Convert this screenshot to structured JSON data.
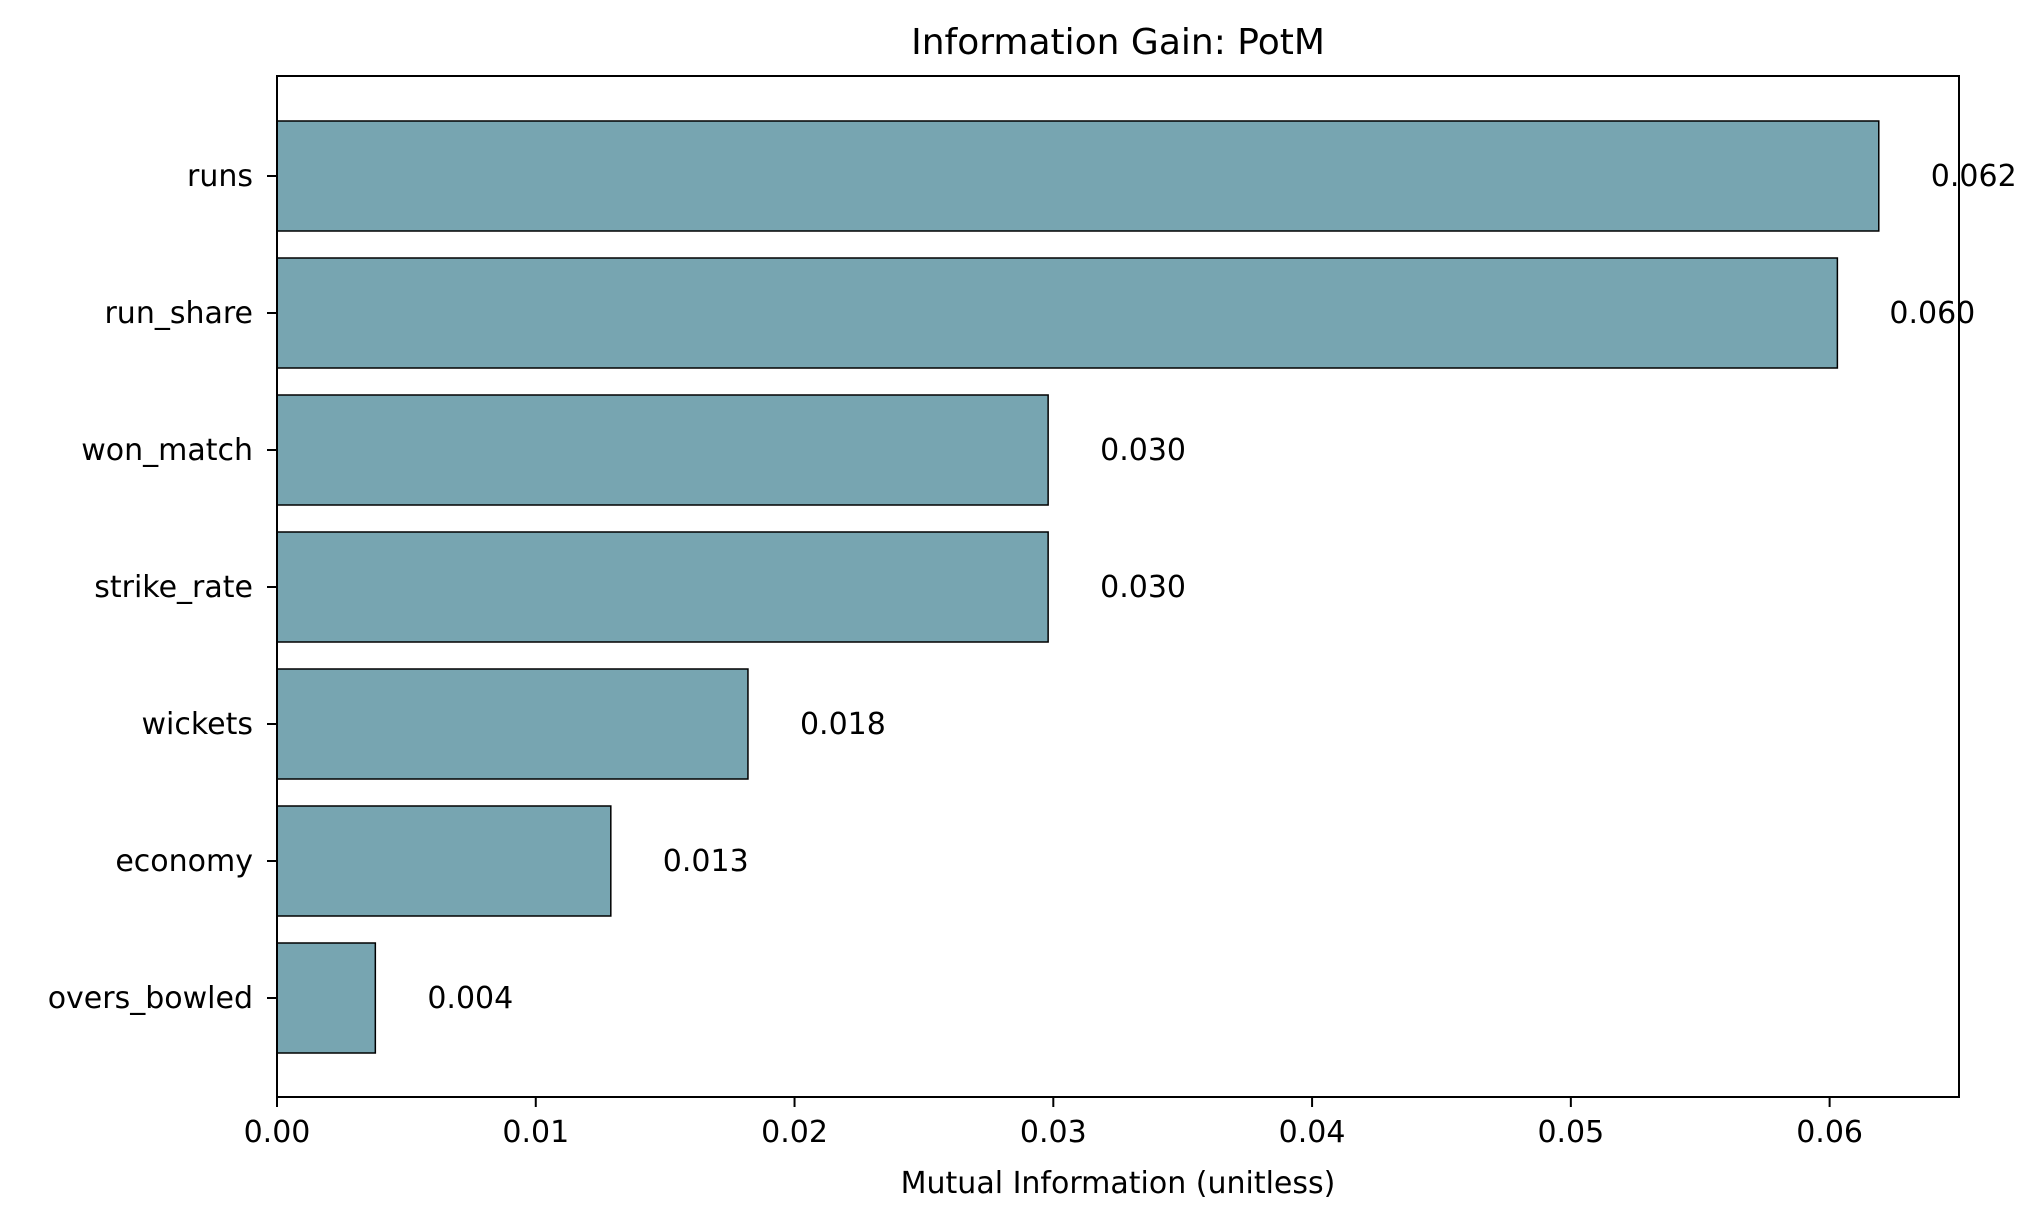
{
  "chart_data": {
    "type": "bar",
    "orientation": "horizontal",
    "title": "Information Gain: PotM",
    "xlabel": "Mutual Information (unitless)",
    "ylabel": "",
    "categories": [
      "runs",
      "run_share",
      "won_match",
      "strike_rate",
      "wickets",
      "economy",
      "overs_bowled"
    ],
    "values": [
      0.0619,
      0.0603,
      0.0298,
      0.0298,
      0.0182,
      0.0129,
      0.0038
    ],
    "data_labels": [
      "0.062",
      "0.060",
      "0.030",
      "0.030",
      "0.018",
      "0.013",
      "0.004"
    ],
    "xlim": [
      0,
      0.065
    ],
    "xticks": [
      0,
      0.01,
      0.02,
      0.03,
      0.04,
      0.05,
      0.06
    ],
    "xtick_labels": [
      "0.00",
      "0.01",
      "0.02",
      "0.03",
      "0.04",
      "0.05",
      "0.06"
    ],
    "grid": false,
    "legend": "none",
    "bar_color": "#77a5b1",
    "bar_edge_color": "#000000"
  }
}
